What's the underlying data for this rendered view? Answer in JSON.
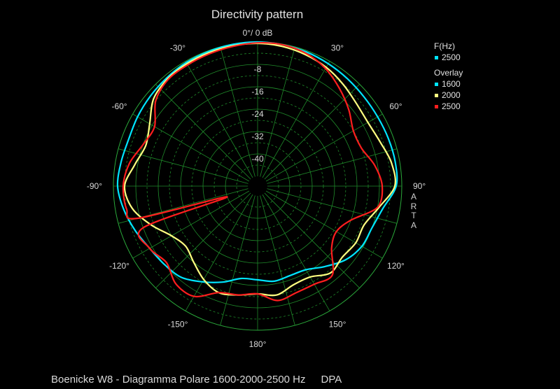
{
  "chart_data": {
    "type": "polar",
    "title": "Directivity pattern",
    "radial_unit_label": "0°/ 0 dB",
    "radial_ticks": [
      "-8",
      "-16",
      "-24",
      "-32",
      "-40"
    ],
    "radial_tick_values": [
      -8,
      -16,
      -24,
      -32,
      -40
    ],
    "rlim": [
      -48,
      0
    ],
    "angle_labels": [
      "-30°",
      "30°",
      "-60°",
      "60°",
      "-90°",
      "90°",
      "-120°",
      "120°",
      "-150°",
      "150°",
      "180°"
    ],
    "grid": true,
    "legend": {
      "position": "right",
      "current_header": "F(Hz)",
      "current": [
        {
          "label": "2500",
          "color": "#00e5ff"
        }
      ],
      "overlay_header": "Overlay",
      "overlay": [
        {
          "label": "1600",
          "color": "#00e5ff"
        },
        {
          "label": "2000",
          "color": "#ffff80"
        },
        {
          "label": "2500",
          "color": "#ff1e1e"
        }
      ]
    },
    "side_label": "ARTA",
    "series": [
      {
        "name": "1600",
        "color": "#00e5ff",
        "angles": [
          0,
          10,
          20,
          30,
          40,
          50,
          60,
          70,
          80,
          90,
          100,
          110,
          120,
          130,
          140,
          150,
          160,
          170,
          180,
          190,
          200,
          210,
          220,
          230,
          240,
          250,
          260,
          270,
          280,
          290,
          300,
          310,
          320,
          330,
          340,
          350
        ],
        "values": [
          0,
          -0.2,
          -0.5,
          -1,
          -1.5,
          -1.9,
          -2,
          -1.8,
          -1.6,
          -2,
          -6,
          -8,
          -8.5,
          -10.5,
          -14,
          -17,
          -17.5,
          -17,
          -18,
          -18,
          -15,
          -12,
          -9,
          -8,
          -7,
          -5,
          -3,
          -1.5,
          -2,
          -2.5,
          -2,
          -1.5,
          -1,
          -0.5,
          -0.3,
          -0.1
        ]
      },
      {
        "name": "2000",
        "color": "#ffff80",
        "angles": [
          0,
          10,
          20,
          30,
          40,
          50,
          60,
          70,
          80,
          90,
          100,
          110,
          120,
          130,
          140,
          150,
          160,
          170,
          180,
          190,
          200,
          210,
          220,
          230,
          240,
          250,
          260,
          270,
          280,
          290,
          300,
          310,
          320,
          330,
          340,
          350
        ],
        "values": [
          -0.5,
          -0.8,
          -1.5,
          -2.5,
          -4,
          -5.5,
          -6,
          -5,
          -3,
          -2.5,
          -7.5,
          -11,
          -11,
          -12,
          -11,
          -14,
          -14,
          -12,
          -13,
          -12,
          -11,
          -13,
          -16,
          -18,
          -16,
          -11,
          -6,
          -4,
          -7,
          -9,
          -7,
          -3,
          -1.5,
          -1,
          -0.8,
          -0.6
        ]
      },
      {
        "name": "2500",
        "color": "#ff1e1e",
        "angles": [
          0,
          10,
          20,
          30,
          40,
          50,
          60,
          70,
          80,
          90,
          100,
          110,
          120,
          130,
          140,
          150,
          160,
          170,
          180,
          190,
          200,
          210,
          220,
          230,
          240,
          250,
          250.5,
          255,
          260,
          270,
          280,
          290,
          300,
          310,
          320,
          330,
          340,
          350
        ],
        "values": [
          -0.3,
          -0.2,
          -1,
          -3,
          -6,
          -9,
          -12,
          -12,
          -9,
          -7,
          -8,
          -16,
          -19,
          -17,
          -10,
          -11,
          -11,
          -10,
          -13,
          -12,
          -11,
          -6,
          -6,
          -9,
          -7,
          -8,
          -40,
          -7,
          -4,
          -3.5,
          -5,
          -8,
          -9,
          -4,
          -1.8,
          -1.5,
          -1.2,
          -0.8
        ]
      }
    ]
  },
  "footer": {
    "caption": "Boenicke W8 - Diagramma Polare 1600-2000-2500 Hz",
    "brand": "DPA"
  }
}
